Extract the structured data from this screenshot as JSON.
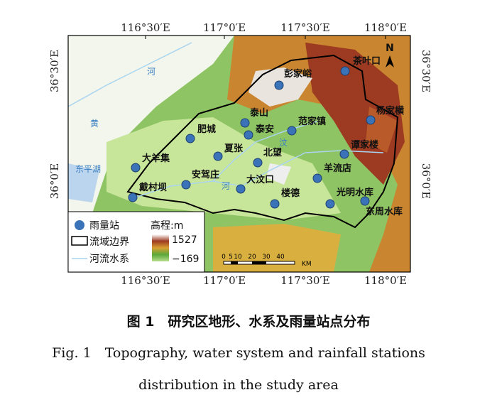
{
  "map": {
    "top_ticks": [
      "116°30′E",
      "117°0′E",
      "117°30′E",
      "118°0′E"
    ],
    "bottom_ticks": [
      "116°30′E",
      "117°0′E",
      "117°30′E",
      "118°0′E"
    ],
    "left_ticks": [
      "36°30′E",
      "36°0′E"
    ],
    "right_ticks": [
      "36°30′E",
      "36°0′E"
    ],
    "north": "N",
    "place_labels": [
      "河",
      "黄",
      "东平湖",
      "汶",
      "河"
    ],
    "stations": [
      "茶叶口",
      "彭家峪",
      "杨家横",
      "泰山",
      "泰安",
      "范家镇",
      "肥城",
      "夏张",
      "北望",
      "谭家楼",
      "大羊集",
      "羊流店",
      "安驾庄",
      "大汶口",
      "戴村坝",
      "楼德",
      "光明水库",
      "东周水库"
    ],
    "legend": {
      "station": "雨量站",
      "boundary": "流域边界",
      "river": "河流水系",
      "elevation": "高程:m",
      "max": "1527",
      "min": "−169"
    },
    "scale": {
      "ticks": [
        "0",
        "5",
        "10",
        "20",
        "30",
        "40"
      ],
      "unit": "KM"
    }
  },
  "caption": {
    "title_cn": "图 1　研究区地形、水系及雨量站点分布",
    "title_en_1": "Fig. 1　Topography, water system and rainfall stations",
    "title_en_2": "distribution in the study area"
  }
}
